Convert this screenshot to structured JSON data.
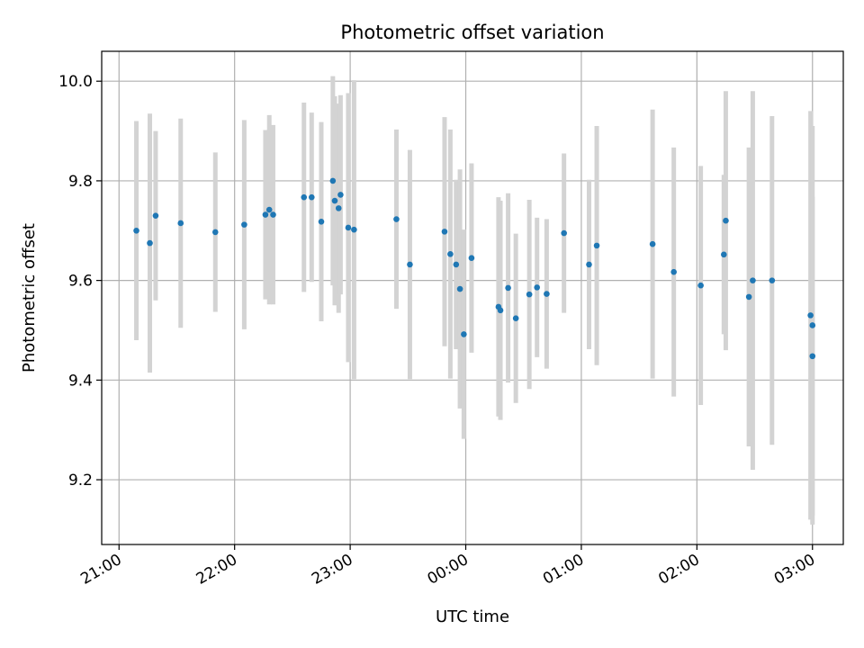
{
  "chart_data": {
    "type": "scatter",
    "title": "Photometric offset variation",
    "xlabel": "UTC time",
    "ylabel": "Photometric offset",
    "grid": true,
    "x_ticks": [
      "21:00",
      "22:00",
      "23:00",
      "00:00",
      "01:00",
      "02:00",
      "03:00"
    ],
    "y_ticks": [
      "9.2",
      "9.4",
      "9.6",
      "9.8",
      "10.0"
    ],
    "y_tick_values": [
      9.2,
      9.4,
      9.6,
      9.8,
      10.0
    ],
    "xlim": [
      "20:51",
      "03:16"
    ],
    "ylim": [
      9.07,
      10.06
    ],
    "colors": {
      "point": "#1f77b4",
      "errorbar": "#d3d3d3",
      "grid": "#b0b0b0"
    },
    "series": [
      {
        "marker": "point",
        "x": [
          "21:09",
          "21:16",
          "21:19",
          "21:32",
          "21:50",
          "22:05",
          "22:16",
          "22:18",
          "22:20",
          "22:36",
          "22:40",
          "22:45",
          "22:51",
          "22:52",
          "22:54",
          "22:55",
          "22:59",
          "23:02",
          "23:24",
          "23:31",
          "23:49",
          "23:52",
          "23:55",
          "23:57",
          "23:59",
          "00:03",
          "00:17",
          "00:18",
          "00:22",
          "00:26",
          "00:33",
          "00:37",
          "00:42",
          "00:51",
          "01:04",
          "01:08",
          "01:37",
          "01:48",
          "02:02",
          "02:14",
          "02:15",
          "02:27",
          "02:29",
          "02:39",
          "02:59",
          "03:00",
          "03:00"
        ],
        "y": [
          9.7,
          9.675,
          9.73,
          9.715,
          9.697,
          9.712,
          9.732,
          9.742,
          9.732,
          9.767,
          9.767,
          9.718,
          9.8,
          9.76,
          9.745,
          9.772,
          9.706,
          9.702,
          9.723,
          9.632,
          9.698,
          9.653,
          9.632,
          9.583,
          9.492,
          9.645,
          9.547,
          9.54,
          9.585,
          9.524,
          9.572,
          9.586,
          9.573,
          9.695,
          9.632,
          9.67,
          9.673,
          9.617,
          9.59,
          9.652,
          9.72,
          9.567,
          9.6,
          9.6,
          9.53,
          9.51,
          9.448
        ],
        "error": [
          0.22,
          0.26,
          0.17,
          0.21,
          0.16,
          0.21,
          0.17,
          0.19,
          0.18,
          0.19,
          0.17,
          0.2,
          0.21,
          0.21,
          0.21,
          0.2,
          0.27,
          0.3,
          0.18,
          0.23,
          0.23,
          0.25,
          0.17,
          0.24,
          0.21,
          0.19,
          0.22,
          0.22,
          0.19,
          0.17,
          0.19,
          0.14,
          0.15,
          0.16,
          0.17,
          0.24,
          0.27,
          0.25,
          0.24,
          0.16,
          0.26,
          0.3,
          0.38,
          0.33,
          0.41,
          0.4,
          0.32
        ]
      }
    ]
  }
}
